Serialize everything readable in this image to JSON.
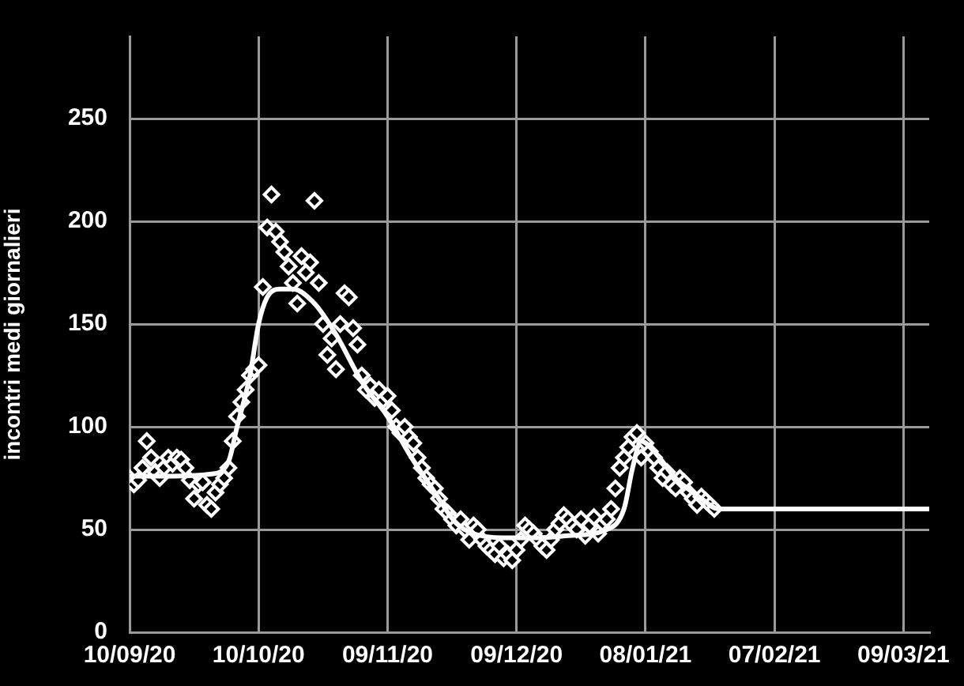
{
  "chart_data": {
    "type": "scatter",
    "ylabel": "incontri medi giornalieri",
    "xlim": [
      "2020-09-10",
      "2021-03-15"
    ],
    "ylim": [
      0,
      290
    ],
    "xticks": [
      {
        "value": "2020-09-10",
        "label": "10/09/20"
      },
      {
        "value": "2020-10-10",
        "label": "10/10/20"
      },
      {
        "value": "2020-11-09",
        "label": "09/11/20"
      },
      {
        "value": "2020-12-09",
        "label": "09/12/20"
      },
      {
        "value": "2021-01-08",
        "label": "08/01/21"
      },
      {
        "value": "2021-02-07",
        "label": "07/02/21"
      },
      {
        "value": "2021-03-09",
        "label": "09/03/21"
      }
    ],
    "yticks": [
      0,
      50,
      100,
      150,
      200,
      250
    ],
    "grid": true,
    "series": [
      {
        "type": "scatter",
        "color": "#ffffff",
        "marker": "diamond",
        "x": [
          "2020-09-10",
          "2020-09-11",
          "2020-09-12",
          "2020-09-13",
          "2020-09-14",
          "2020-09-15",
          "2020-09-16",
          "2020-09-17",
          "2020-09-18",
          "2020-09-19",
          "2020-09-20",
          "2020-09-21",
          "2020-09-22",
          "2020-09-23",
          "2020-09-24",
          "2020-09-25",
          "2020-09-26",
          "2020-09-27",
          "2020-09-28",
          "2020-09-29",
          "2020-09-30",
          "2020-10-01",
          "2020-10-02",
          "2020-10-03",
          "2020-10-04",
          "2020-10-05",
          "2020-10-06",
          "2020-10-07",
          "2020-10-08",
          "2020-10-09",
          "2020-10-10",
          "2020-10-11",
          "2020-10-12",
          "2020-10-13",
          "2020-10-14",
          "2020-10-15",
          "2020-10-16",
          "2020-10-17",
          "2020-10-18",
          "2020-10-19",
          "2020-10-20",
          "2020-10-21",
          "2020-10-22",
          "2020-10-23",
          "2020-10-24",
          "2020-10-25",
          "2020-10-26",
          "2020-10-27",
          "2020-10-28",
          "2020-10-29",
          "2020-10-30",
          "2020-10-31",
          "2020-11-01",
          "2020-11-02",
          "2020-11-03",
          "2020-11-04",
          "2020-11-05",
          "2020-11-06",
          "2020-11-07",
          "2020-11-08",
          "2020-11-09",
          "2020-11-10",
          "2020-11-11",
          "2020-11-12",
          "2020-11-13",
          "2020-11-14",
          "2020-11-15",
          "2020-11-16",
          "2020-11-17",
          "2020-11-18",
          "2020-11-19",
          "2020-11-20",
          "2020-11-21",
          "2020-11-22",
          "2020-11-23",
          "2020-11-24",
          "2020-11-25",
          "2020-11-26",
          "2020-11-27",
          "2020-11-28",
          "2020-11-29",
          "2020-11-30",
          "2020-12-01",
          "2020-12-02",
          "2020-12-03",
          "2020-12-04",
          "2020-12-05",
          "2020-12-06",
          "2020-12-07",
          "2020-12-08",
          "2020-12-09",
          "2020-12-10",
          "2020-12-11",
          "2020-12-12",
          "2020-12-13",
          "2020-12-14",
          "2020-12-15",
          "2020-12-16",
          "2020-12-17",
          "2020-12-18",
          "2020-12-19",
          "2020-12-20",
          "2020-12-21",
          "2020-12-22",
          "2020-12-23",
          "2020-12-24",
          "2020-12-25",
          "2020-12-26",
          "2020-12-27",
          "2020-12-28",
          "2020-12-29",
          "2020-12-30",
          "2020-12-31",
          "2021-01-01",
          "2021-01-02",
          "2021-01-03",
          "2021-01-04",
          "2021-01-05",
          "2021-01-06",
          "2021-01-07",
          "2021-01-08",
          "2021-01-09",
          "2021-01-10",
          "2021-01-11",
          "2021-01-12",
          "2021-01-13",
          "2021-01-14",
          "2021-01-15",
          "2021-01-16",
          "2021-01-17",
          "2021-01-18",
          "2021-01-19",
          "2021-01-20",
          "2021-01-21",
          "2021-01-22",
          "2021-01-23",
          "2021-01-24"
        ],
        "values": [
          75,
          72,
          74,
          80,
          93,
          85,
          78,
          75,
          80,
          85,
          82,
          85,
          84,
          80,
          74,
          65,
          72,
          73,
          62,
          60,
          68,
          72,
          75,
          80,
          93,
          105,
          112,
          118,
          125,
          128,
          130,
          168,
          197,
          213,
          195,
          190,
          185,
          178,
          170,
          160,
          183,
          175,
          180,
          210,
          170,
          150,
          135,
          143,
          128,
          150,
          165,
          163,
          148,
          140,
          125,
          118,
          120,
          114,
          118,
          113,
          115,
          108,
          100,
          97,
          100,
          95,
          92,
          85,
          80,
          75,
          72,
          70,
          65,
          60,
          58,
          55,
          52,
          55,
          50,
          45,
          52,
          50,
          45,
          42,
          40,
          38,
          42,
          36,
          38,
          35,
          40,
          45,
          52,
          50,
          48,
          45,
          42,
          40,
          45,
          50,
          53,
          57,
          55,
          52,
          50,
          55,
          47,
          52,
          56,
          48,
          53,
          55,
          60,
          70,
          80,
          85,
          90,
          95,
          97,
          85,
          92,
          88,
          85,
          80,
          75,
          78,
          72,
          70,
          75,
          73,
          68,
          65,
          62,
          66,
          64,
          62,
          60
        ]
      },
      {
        "type": "line",
        "color": "#ffffff",
        "marker": "none",
        "x": [
          "2020-09-10",
          "2020-09-20",
          "2020-09-29",
          "2020-10-03",
          "2020-10-05",
          "2020-10-08",
          "2020-10-10",
          "2020-10-12",
          "2020-10-15",
          "2020-10-18",
          "2020-10-23",
          "2020-10-28",
          "2020-11-03",
          "2020-11-09",
          "2020-11-14",
          "2020-11-20",
          "2020-11-25",
          "2020-11-29",
          "2020-12-06",
          "2020-12-14",
          "2020-12-21",
          "2020-12-30",
          "2021-01-03",
          "2021-01-05",
          "2021-01-07",
          "2021-01-10",
          "2021-01-15",
          "2021-01-21",
          "2021-01-25",
          "2021-03-15"
        ],
        "values": [
          76,
          76,
          77,
          83,
          100,
          125,
          150,
          163,
          167,
          167,
          160,
          145,
          122,
          105,
          87,
          68,
          53,
          48,
          46,
          46,
          47,
          50,
          60,
          80,
          93,
          88,
          75,
          65,
          60,
          60
        ]
      }
    ]
  }
}
